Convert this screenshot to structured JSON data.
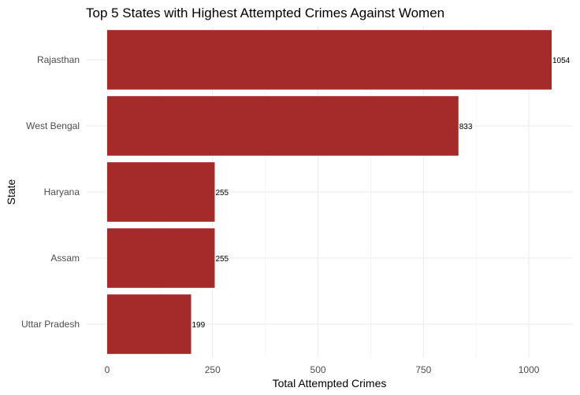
{
  "chart_data": {
    "type": "bar",
    "orientation": "horizontal",
    "title": "Top 5 States with Highest Attempted Crimes Against Women",
    "xlabel": "Total Attempted Crimes",
    "ylabel": "State",
    "categories": [
      "Rajasthan",
      "West Bengal",
      "Haryana",
      "Assam",
      "Uttar Pradesh"
    ],
    "values": [
      1054,
      833,
      255,
      255,
      199
    ],
    "data_labels": [
      "1054",
      "833",
      "255",
      "255",
      "199"
    ],
    "xlim": [
      0,
      1100
    ],
    "xticks": [
      0,
      250,
      500,
      750,
      1000
    ],
    "xtick_labels": [
      "0",
      "250",
      "500",
      "750",
      "1000"
    ],
    "bar_color": "#a52a2a",
    "grid": true,
    "legend": "none"
  }
}
